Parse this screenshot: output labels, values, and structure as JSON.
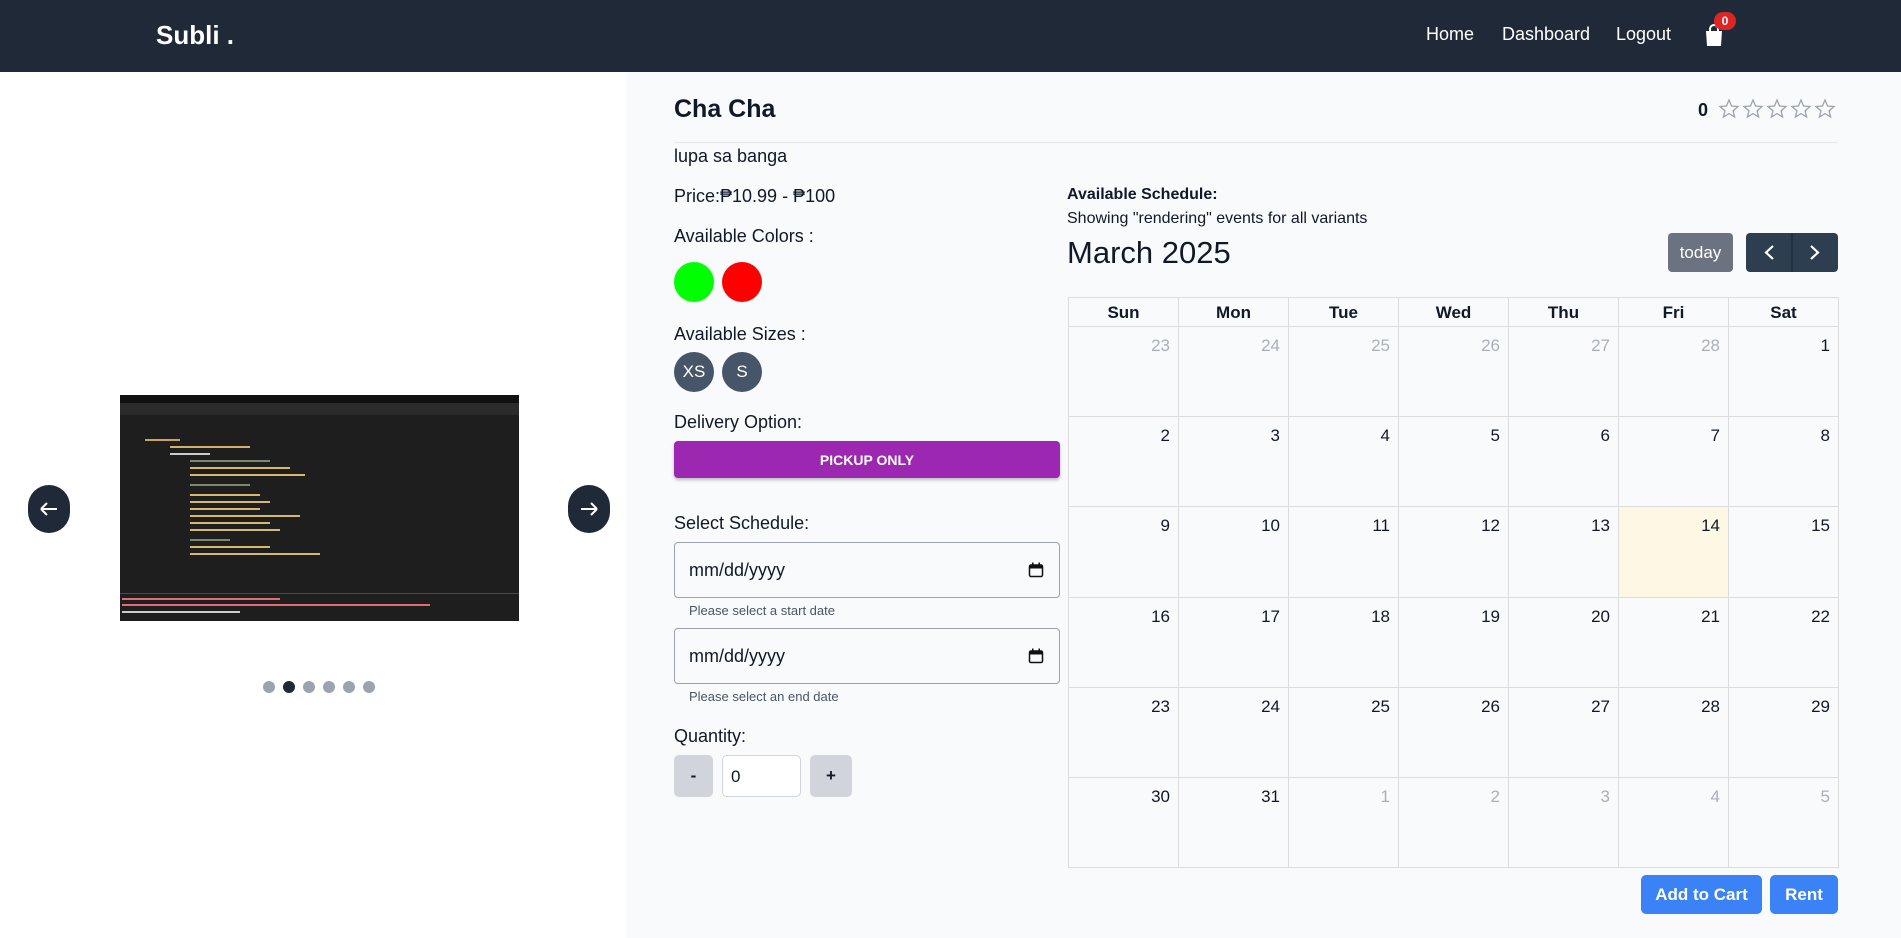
{
  "navbar": {
    "brand": "Subli .",
    "links": [
      "Home",
      "Dashboard",
      "Logout"
    ],
    "cart_count": "0"
  },
  "product": {
    "name": "Cha Cha",
    "rating": "0",
    "description": "lupa sa banga",
    "price_label": "Price:",
    "price": "₱10.99 - ₱100",
    "colors_label": "Available Colors :",
    "colors": [
      "#00ff00",
      "#ff0000"
    ],
    "sizes_label": "Available Sizes :",
    "sizes": [
      "XS",
      "S"
    ],
    "delivery_label": "Delivery Option:",
    "delivery": "PICKUP ONLY",
    "schedule_label": "Select Schedule:",
    "start_date": {
      "placeholder": "mm/dd/yyyy",
      "hint": "Please select a start date"
    },
    "end_date": {
      "placeholder": "mm/dd/yyyy",
      "hint": "Please select an end date"
    },
    "quantity_label": "Quantity:",
    "quantity": "0",
    "decrement": "-",
    "increment": "+",
    "add_to_cart": "Add to Cart",
    "rent": "Rent"
  },
  "calendar": {
    "heading": "Available Schedule:",
    "note": "Showing \"rendering\" events for all variants",
    "month": "March 2025",
    "today_button": "today",
    "weekdays": [
      "Sun",
      "Mon",
      "Tue",
      "Wed",
      "Thu",
      "Fri",
      "Sat"
    ],
    "weeks": [
      [
        23,
        24,
        25,
        26,
        27,
        28,
        1
      ],
      [
        2,
        3,
        4,
        5,
        6,
        7,
        8
      ],
      [
        9,
        10,
        11,
        12,
        13,
        14,
        15
      ],
      [
        16,
        17,
        18,
        19,
        20,
        21,
        22
      ],
      [
        23,
        24,
        25,
        26,
        27,
        28,
        29
      ],
      [
        30,
        31,
        1,
        2,
        3,
        4,
        5
      ]
    ]
  }
}
